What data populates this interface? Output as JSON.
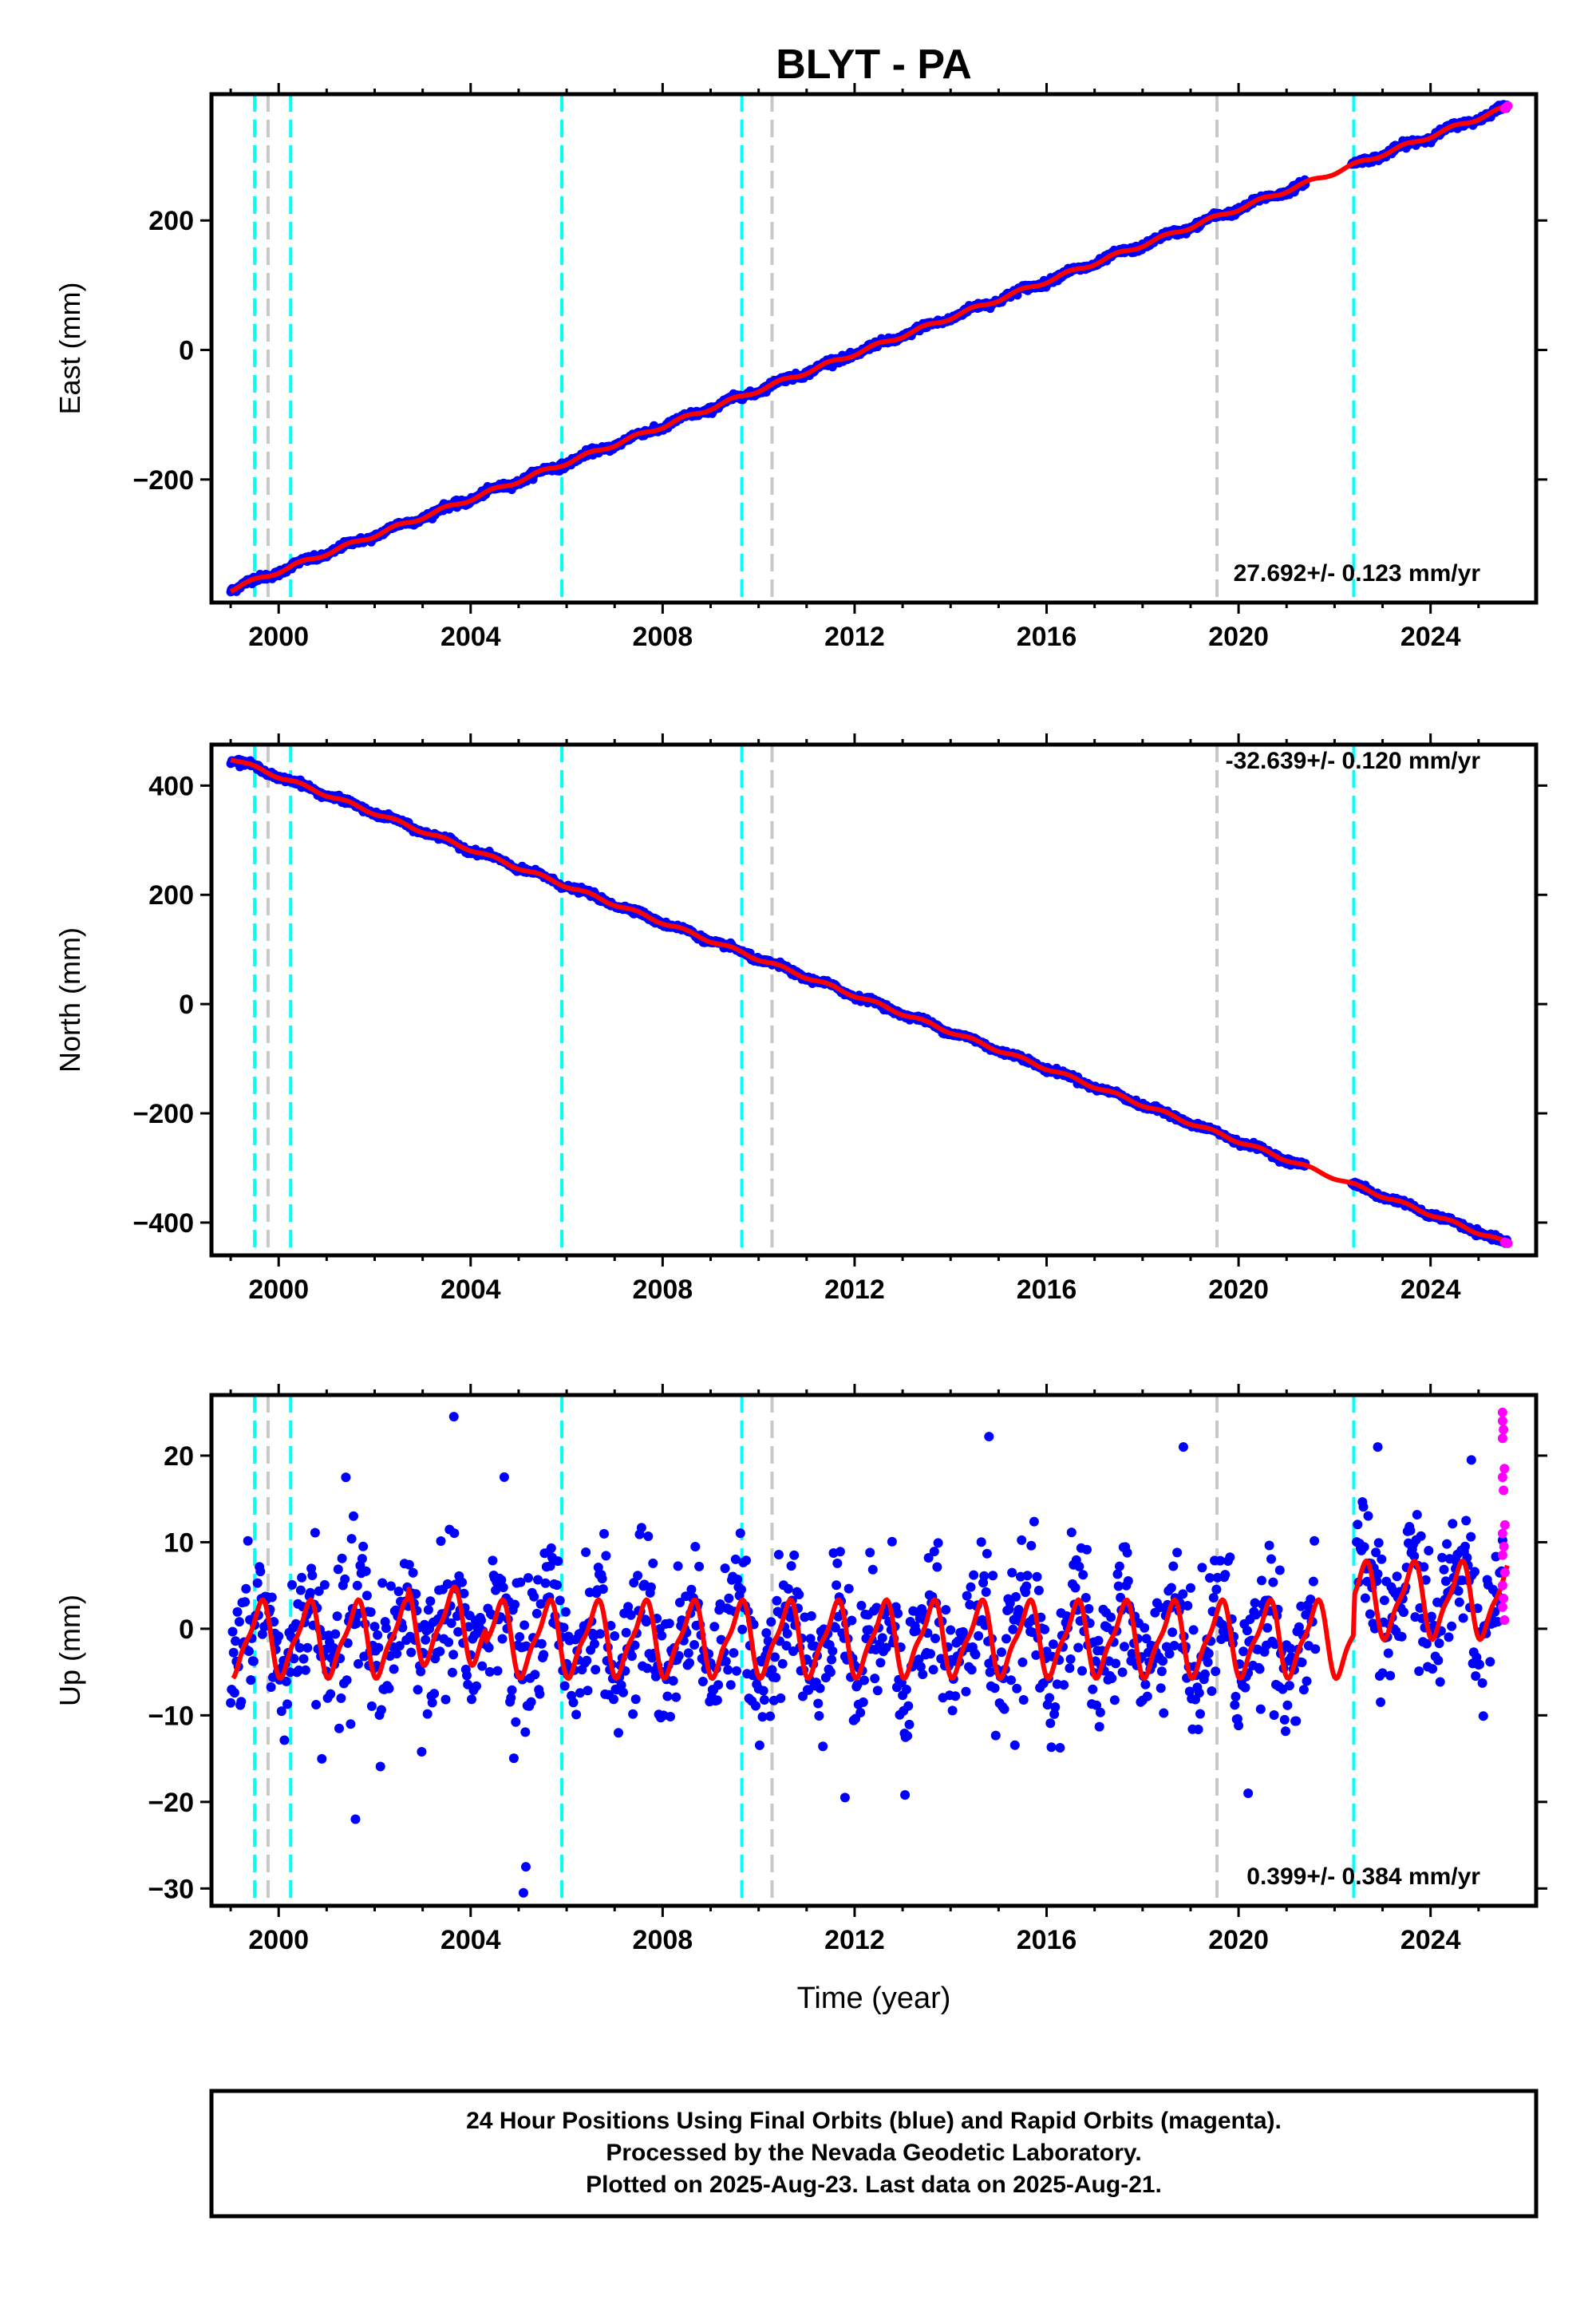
{
  "title": "BLYT - PA",
  "colors": {
    "final_orbits": "#0000ff",
    "rapid_orbits": "#ff00ff",
    "model": "#ff0000",
    "equipment_change_lines": "#00ffff",
    "other_event_lines": "#c8c8c8"
  },
  "event_lines": {
    "cyan": [
      1999.5,
      2000.25,
      2005.9,
      2009.65,
      2022.4
    ],
    "gray": [
      1999.78,
      2010.28,
      2019.55
    ]
  },
  "x_axis": {
    "label": "Time (year)",
    "range": [
      1998.6,
      2026.2
    ],
    "ticks": [
      "2000",
      "2004",
      "2008",
      "2012",
      "2016",
      "2020",
      "2024"
    ]
  },
  "footer": {
    "line1": "24 Hour Positions Using Final Orbits (blue) and Rapid Orbits (magenta).",
    "line2": "Processed by the Nevada Geodetic Laboratory.",
    "line3": "Plotted on 2025-Aug-23. Last data on 2025-Aug-21."
  },
  "chart_data": [
    {
      "type": "scatter",
      "component": "east",
      "ylabel": "East (mm)",
      "ylim": [
        -390,
        395
      ],
      "yticks": [
        "200",
        "0",
        "−200"
      ],
      "rate_label": "27.692+/- 0.123 mm/yr",
      "trend": {
        "start": [
          1999.0,
          -370
        ],
        "end": [
          2025.6,
          375
        ]
      },
      "seasonal_amplitude_mm": 3,
      "scatter_sd_mm": 2.5,
      "model_gap": [
        2021.3,
        2022.4
      ],
      "rapid_points": [
        [
          2025.55,
          373
        ],
        [
          2025.58,
          375
        ],
        [
          2025.61,
          377
        ]
      ]
    },
    {
      "type": "scatter",
      "component": "north",
      "ylabel": "North (mm)",
      "ylim": [
        -460,
        475
      ],
      "yticks": [
        "400",
        "200",
        "0",
        "−200",
        "−400"
      ],
      "rate_label": "-32.639+/- 0.120 mm/yr",
      "trend": {
        "start": [
          1999.0,
          450
        ],
        "end": [
          2025.6,
          -438
        ]
      },
      "seasonal_amplitude_mm": 3,
      "scatter_sd_mm": 2.5,
      "model_gap": [
        2021.3,
        2022.4
      ],
      "rapid_points": [
        [
          2025.55,
          -436
        ],
        [
          2025.58,
          -437
        ],
        [
          2025.61,
          -438
        ]
      ]
    },
    {
      "type": "scatter",
      "component": "up",
      "ylabel": "Up (mm)",
      "ylim": [
        -32,
        27
      ],
      "yticks": [
        "20",
        "10",
        "0",
        "−10",
        "−20",
        "−30"
      ],
      "rate_label": "0.399+/- 0.384 mm/yr",
      "seasonal_model": {
        "mean_mm": -1.2,
        "amplitude_mm": 4.0,
        "offset_after_2022_4_mm": 4.5
      },
      "scatter_sd_mm": 4.0,
      "outliers": [
        [
          2003.65,
          24.5
        ],
        [
          2005.1,
          -30.5
        ],
        [
          2005.15,
          -27.5
        ],
        [
          2014.8,
          22.2
        ],
        [
          2018.85,
          21.0
        ],
        [
          2022.9,
          21.0
        ],
        [
          2024.85,
          19.5
        ],
        [
          2020.2,
          -19.0
        ],
        [
          2011.8,
          -19.5
        ],
        [
          2013.05,
          -19.2
        ],
        [
          2001.6,
          -22.0
        ]
      ],
      "rapid_points": [
        [
          2025.5,
          25
        ],
        [
          2025.5,
          24
        ],
        [
          2025.52,
          23
        ],
        [
          2025.5,
          22
        ],
        [
          2025.54,
          18.5
        ],
        [
          2025.5,
          17.5
        ],
        [
          2025.52,
          16
        ],
        [
          2025.55,
          12
        ],
        [
          2025.5,
          11
        ],
        [
          2025.53,
          9.5
        ],
        [
          2025.5,
          8.5
        ],
        [
          2025.55,
          6.5
        ],
        [
          2025.5,
          5
        ],
        [
          2025.52,
          3.5
        ],
        [
          2025.5,
          2.5
        ],
        [
          2025.54,
          1
        ]
      ]
    }
  ]
}
